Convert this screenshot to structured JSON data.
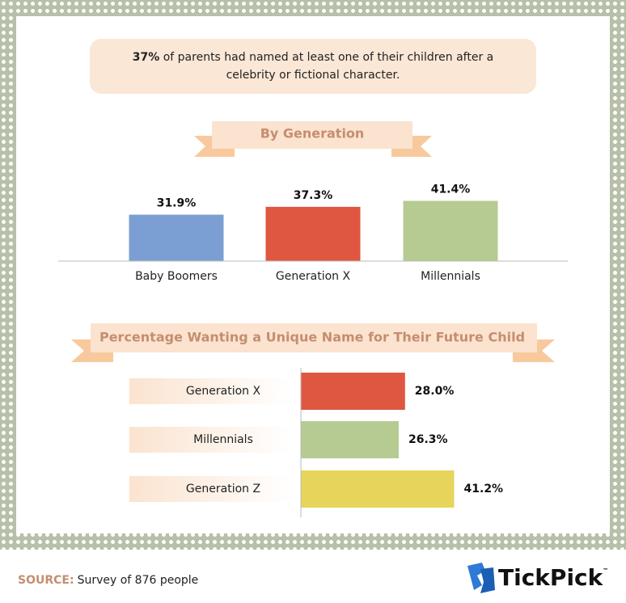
{
  "callout": {
    "highlight": "37%",
    "text": "of parents had named at least one of their children after a celebrity or fictional character."
  },
  "chart_data": [
    {
      "type": "bar",
      "title": "By Generation",
      "categories": [
        "Baby Boomers",
        "Generation X",
        "Millennials"
      ],
      "values": [
        31.9,
        37.3,
        41.4
      ],
      "value_labels": [
        "31.9%",
        "37.3%",
        "41.4%"
      ],
      "colors": [
        "#7b9fd2",
        "#df5641",
        "#b6cb91"
      ],
      "ylim": [
        0,
        50
      ]
    },
    {
      "type": "barh",
      "title": "Percentage Wanting a Unique Name for Their Future Child",
      "categories": [
        "Generation X",
        "Millennials",
        "Generation Z"
      ],
      "values": [
        28.0,
        26.3,
        41.2
      ],
      "value_labels": [
        "28.0%",
        "26.3%",
        "41.2%"
      ],
      "colors": [
        "#df5641",
        "#b6cb91",
        "#e6d45b"
      ],
      "xlim": [
        0,
        50
      ]
    }
  ],
  "footer": {
    "source_label": "SOURCE:",
    "source_text": "Survey of 876 people"
  },
  "logo": {
    "name": "TickPick",
    "mark": "™"
  }
}
